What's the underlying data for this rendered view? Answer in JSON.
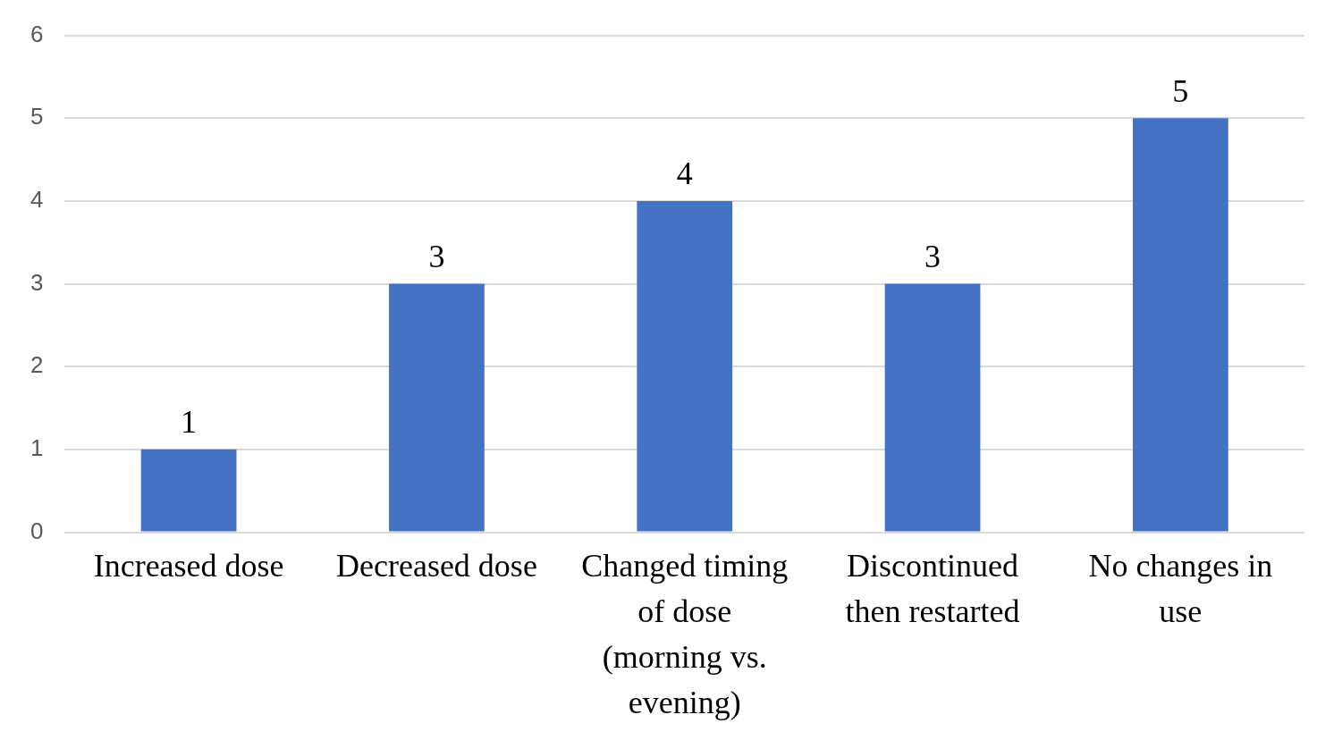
{
  "chart_data": {
    "type": "bar",
    "categories": [
      "Increased dose",
      "Decreased dose",
      "Changed timing of dose (morning vs. evening)",
      "Discontinued then restarted",
      "No changes in use"
    ],
    "values": [
      1,
      3,
      4,
      3,
      5
    ],
    "color": "#4472c4",
    "ylim": [
      0,
      6
    ],
    "yticks": [
      0,
      1,
      2,
      3,
      4,
      5,
      6
    ],
    "grid": "y",
    "legend": false,
    "data_labels": true
  }
}
